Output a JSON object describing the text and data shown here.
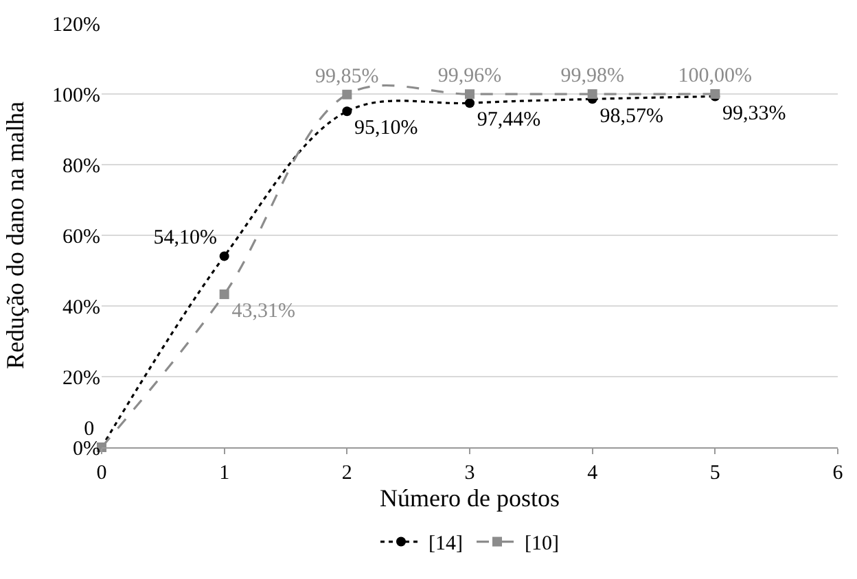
{
  "chart_data": {
    "type": "line",
    "xlabel": "Número de postos",
    "ylabel": "Redução do dano na malha",
    "x": [
      0,
      1,
      2,
      3,
      4,
      5
    ],
    "series": [
      {
        "name": "[14]",
        "color": "#000000",
        "values": [
          0,
          54.1,
          95.1,
          97.44,
          98.57,
          99.33
        ],
        "marker": "circle",
        "line_style": "dotted",
        "value_labels": [
          "0",
          "54,10%",
          "95,10%",
          "97,44%",
          "98,57%",
          "99,33%"
        ]
      },
      {
        "name": "[10]",
        "color": "#8c8c8c",
        "values": [
          0,
          43.31,
          99.85,
          99.96,
          99.98,
          100.0
        ],
        "marker": "square",
        "line_style": "dashed",
        "value_labels": [
          null,
          "43,31%",
          "99,85%",
          "99,96%",
          "99,98%",
          "100,00%"
        ]
      }
    ],
    "xlim": [
      0,
      6
    ],
    "xticks": [
      0,
      1,
      2,
      3,
      4,
      5,
      6
    ],
    "ylim": [
      0,
      120
    ],
    "yticks": [
      {
        "value": 0,
        "label": "0%"
      },
      {
        "value": 20,
        "label": "20%"
      },
      {
        "value": 40,
        "label": "40%"
      },
      {
        "value": 60,
        "label": "60%"
      },
      {
        "value": 80,
        "label": "80%"
      },
      {
        "value": 100,
        "label": "100%"
      },
      {
        "value": 120,
        "label": "120%"
      }
    ],
    "grid": "y",
    "legend": "bottom"
  }
}
